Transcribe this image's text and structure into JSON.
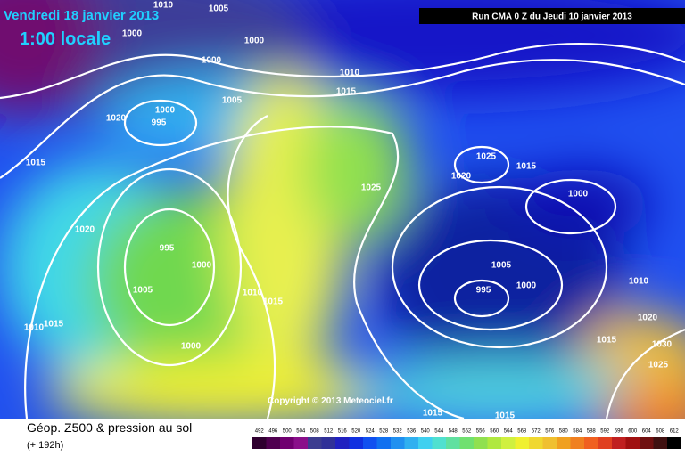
{
  "header": {
    "date": "Vendredi 18 janvier 2013",
    "time": "1:00 locale",
    "run": "Run CMA 0 Z du Jeudi 10 janvier 2013"
  },
  "isobar_labels": [
    "1005",
    "1010",
    "1000",
    "1000",
    "1000",
    "1010",
    "1005",
    "1015",
    "1020",
    "995",
    "1000",
    "1015",
    "1025",
    "1020",
    "1015",
    "1025",
    "1000",
    "1020",
    "995",
    "1000",
    "1005",
    "1010",
    "1015",
    "1005",
    "1000",
    "995",
    "1010",
    "1020",
    "1015",
    "1030",
    "1025",
    "1000",
    "1015",
    "1010",
    "1015",
    "1015"
  ],
  "copyright": "Copyright © 2013 Meteociel.fr",
  "caption": {
    "title": "Géop. Z500 & pression au sol",
    "lead": "(+ 192h)"
  },
  "legend": {
    "values": [
      492,
      496,
      500,
      504,
      508,
      512,
      516,
      520,
      524,
      528,
      532,
      536,
      540,
      544,
      548,
      552,
      556,
      560,
      564,
      568,
      572,
      576,
      580,
      584,
      588,
      592,
      596,
      600,
      604,
      608,
      612
    ]
  }
}
